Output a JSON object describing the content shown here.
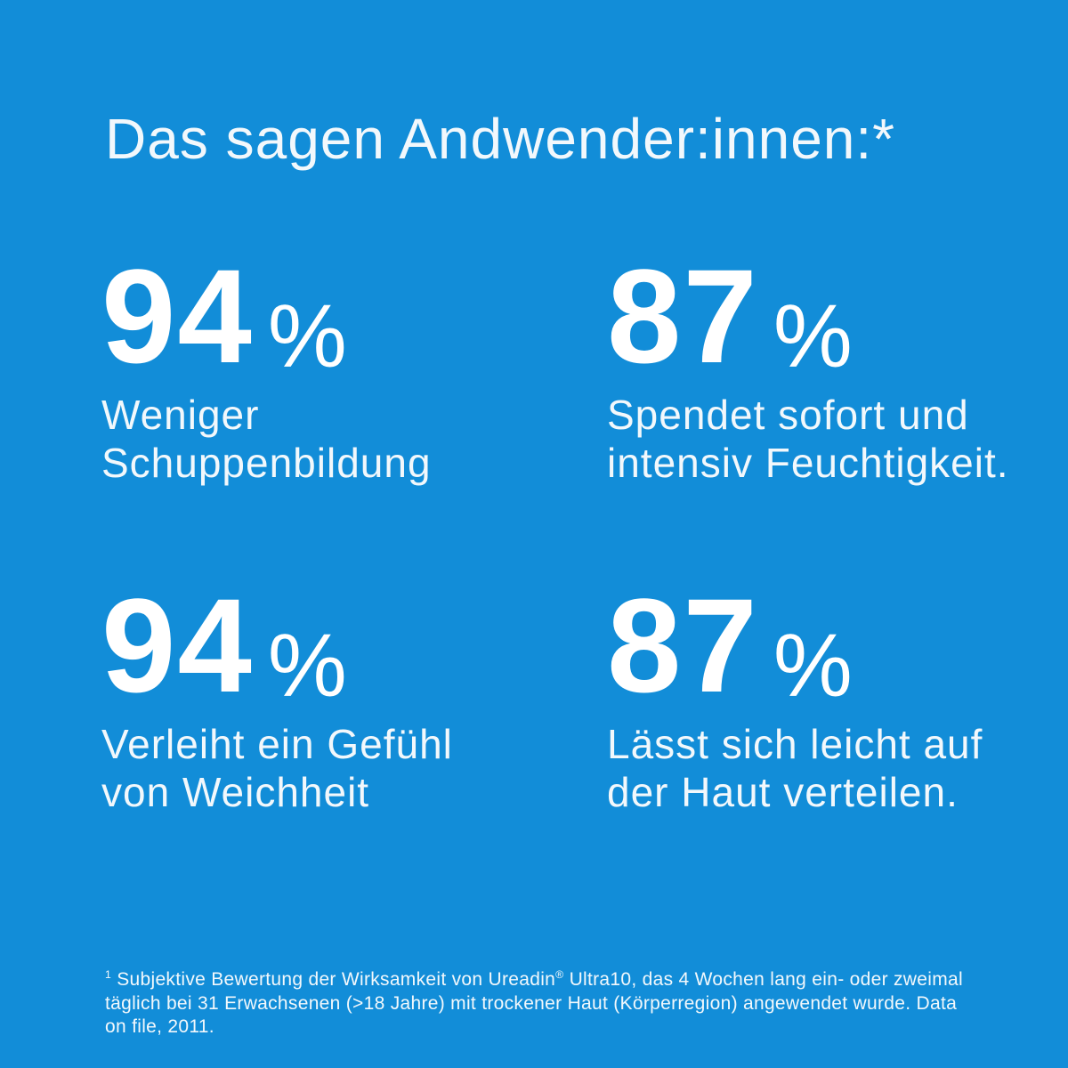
{
  "theme": {
    "background": "#128DD8",
    "text_strong": "#FFFFFF",
    "text_soft": "#F2F8FC"
  },
  "header": {
    "title": "Das sagen Andwender:innen:*"
  },
  "stats": [
    {
      "value": "94",
      "unit": "%",
      "label_line1": "Weniger",
      "label_line2": "Schuppenbildung"
    },
    {
      "value": "87",
      "unit": "%",
      "label_line1": "Spendet sofort und",
      "label_line2": "intensiv Feuchtigkeit."
    },
    {
      "value": "94",
      "unit": "%",
      "label_line1": "Verleiht ein Gefühl",
      "label_line2": "von Weichheit"
    },
    {
      "value": "87",
      "unit": "%",
      "label_line1": "Lässt sich leicht auf",
      "label_line2": "der Haut verteilen."
    }
  ],
  "footnote": {
    "marker": "1",
    "text_before_reg": " Subjektive Bewertung der Wirksamkeit von Ureadin",
    "reg_symbol": "®",
    "text_after_reg": " Ultra10, das 4 Wochen lang ein- oder zweimal täglich bei 31 Erwachsenen (>18 Jahre) mit trockener Haut (Körperregion) angewendet wurde. Data on file, 2011."
  }
}
